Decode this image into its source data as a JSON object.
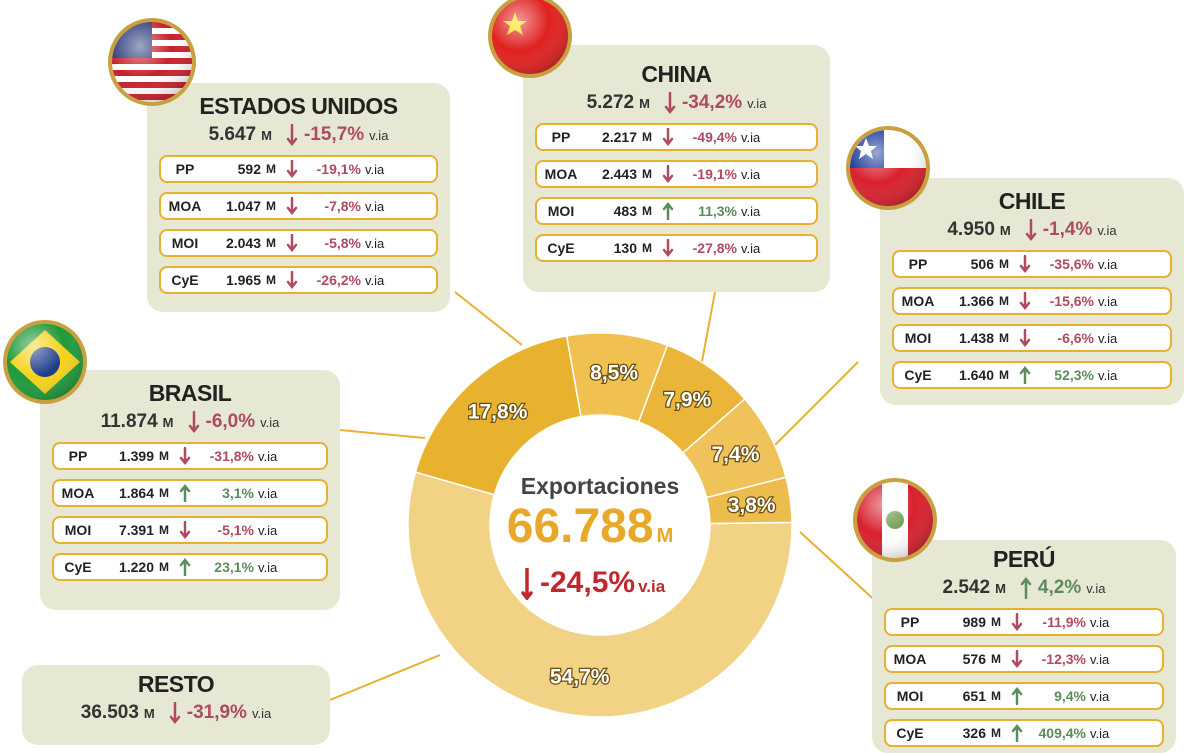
{
  "chart_data": {
    "type": "donut",
    "categories": [
      "ESTADOS UNIDOS",
      "CHINA",
      "CHILE",
      "PERÚ",
      "RESTO",
      "BRASIL"
    ],
    "values": [
      8.5,
      7.9,
      7.4,
      3.8,
      54.7,
      17.8
    ],
    "value_labels": [
      "8,5%",
      "7,9%",
      "7,4%",
      "3,8%",
      "54,7%",
      "17,8%"
    ],
    "colors": [
      "#f0c150",
      "#ebb53a",
      "#f0c35a",
      "#ecbd4c",
      "#f2d284",
      "#e9b22e"
    ],
    "center": {
      "title": "Exportaciones",
      "total": "66.788",
      "unit": "M",
      "change": "-24,5%",
      "trend": "down",
      "suffix": "v.ia"
    }
  },
  "countries": [
    {
      "total": "5.647",
      "change": "-15,7%",
      "trend": "down",
      "rows": [
        {
          "label": "PP",
          "value": "592",
          "change": "-19,1%",
          "trend": "down"
        },
        {
          "label": "MOA",
          "value": "1.047",
          "change": "-7,8%",
          "trend": "down"
        },
        {
          "label": "MOI",
          "value": "2.043",
          "change": "-5,8%",
          "trend": "down"
        },
        {
          "label": "CyE",
          "value": "1.965",
          "change": "-26,2%",
          "trend": "down"
        }
      ]
    },
    {
      "total": "5.272",
      "change": "-34,2%",
      "trend": "down",
      "rows": [
        {
          "label": "PP",
          "value": "2.217",
          "change": "-49,4%",
          "trend": "down"
        },
        {
          "label": "MOA",
          "value": "2.443",
          "change": "-19,1%",
          "trend": "down"
        },
        {
          "label": "MOI",
          "value": "483",
          "change": "11,3%",
          "trend": "up"
        },
        {
          "label": "CyE",
          "value": "130",
          "change": "-27,8%",
          "trend": "down"
        }
      ]
    },
    {
      "total": "4.950",
      "change": "-1,4%",
      "trend": "down",
      "rows": [
        {
          "label": "PP",
          "value": "506",
          "change": "-35,6%",
          "trend": "down"
        },
        {
          "label": "MOA",
          "value": "1.366",
          "change": "-15,6%",
          "trend": "down"
        },
        {
          "label": "MOI",
          "value": "1.438",
          "change": "-6,6%",
          "trend": "down"
        },
        {
          "label": "CyE",
          "value": "1.640",
          "change": "52,3%",
          "trend": "up"
        }
      ]
    },
    {
      "total": "2.542",
      "change": "4,2%",
      "trend": "up",
      "rows": [
        {
          "label": "PP",
          "value": "989",
          "change": "-11,9%",
          "trend": "down"
        },
        {
          "label": "MOA",
          "value": "576",
          "change": "-12,3%",
          "trend": "down"
        },
        {
          "label": "MOI",
          "value": "651",
          "change": "9,4%",
          "trend": "up"
        },
        {
          "label": "CyE",
          "value": "326",
          "change": "409,4%",
          "trend": "up"
        }
      ]
    },
    {
      "total": "36.503",
      "change": "-31,9%",
      "trend": "down",
      "rows": []
    },
    {
      "total": "11.874",
      "change": "-6,0%",
      "trend": "down",
      "rows": [
        {
          "label": "PP",
          "value": "1.399",
          "change": "-31,8%",
          "trend": "down"
        },
        {
          "label": "MOA",
          "value": "1.864",
          "change": "3,1%",
          "trend": "up"
        },
        {
          "label": "MOI",
          "value": "7.391",
          "change": "-5,1%",
          "trend": "down"
        },
        {
          "label": "CyE",
          "value": "1.220",
          "change": "23,1%",
          "trend": "up"
        }
      ]
    }
  ]
}
